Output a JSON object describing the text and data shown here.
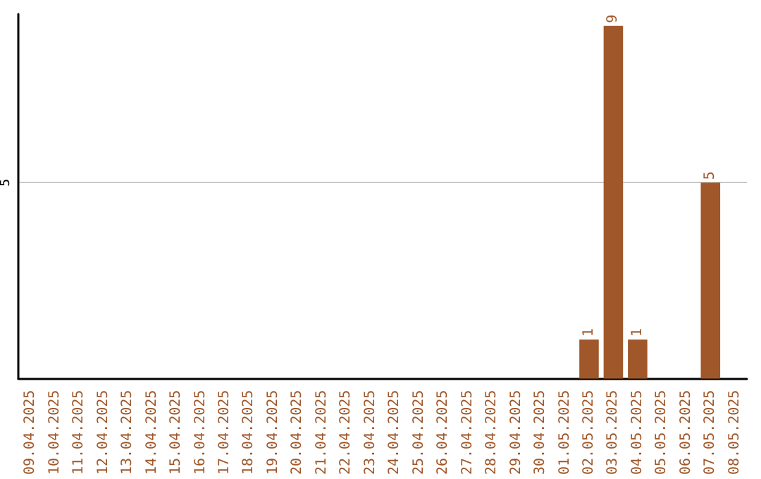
{
  "chart_data": {
    "type": "bar",
    "categories": [
      "09.04.2025",
      "10.04.2025",
      "11.04.2025",
      "12.04.2025",
      "13.04.2025",
      "14.04.2025",
      "15.04.2025",
      "16.04.2025",
      "17.04.2025",
      "18.04.2025",
      "19.04.2025",
      "20.04.2025",
      "21.04.2025",
      "22.04.2025",
      "23.04.2025",
      "24.04.2025",
      "25.04.2025",
      "26.04.2025",
      "27.04.2025",
      "28.04.2025",
      "29.04.2025",
      "30.04.2025",
      "01.05.2025",
      "02.05.2025",
      "03.05.2025",
      "04.05.2025",
      "05.05.2025",
      "06.05.2025",
      "07.05.2025",
      "08.05.2025"
    ],
    "values": [
      null,
      null,
      null,
      null,
      null,
      null,
      null,
      null,
      null,
      null,
      null,
      null,
      null,
      null,
      null,
      null,
      null,
      null,
      null,
      null,
      null,
      null,
      null,
      1,
      9,
      1,
      null,
      null,
      5,
      null
    ],
    "color": "#a0582a",
    "ylim": [
      0,
      9.3
    ],
    "yticks": [
      5
    ],
    "grid": "y",
    "data_labels": true
  }
}
